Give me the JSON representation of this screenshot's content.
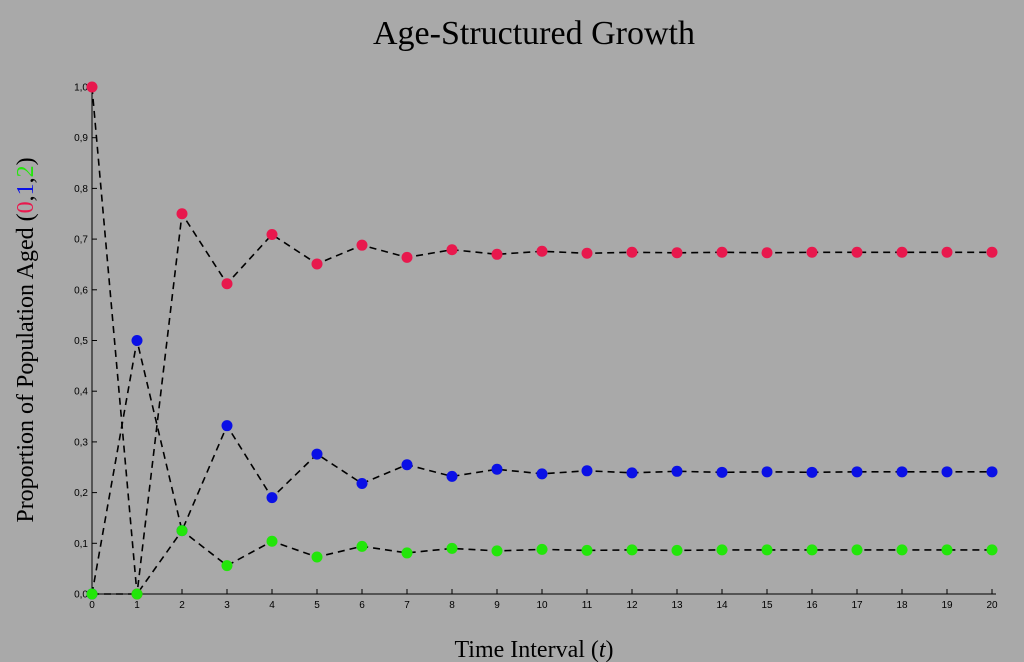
{
  "chart_data": {
    "type": "scatter",
    "title": "Age-Structured Growth",
    "xlabel_prefix": "Time Interval (",
    "xlabel_var": "t",
    "xlabel_suffix": ")",
    "ylabel_prefix": "Proportion of Population Aged (",
    "ylabel_parts": [
      "0",
      ",",
      "1",
      ",",
      "2"
    ],
    "ylabel_suffix": ")",
    "xlim": [
      0,
      20
    ],
    "ylim": [
      0,
      1.0
    ],
    "x": [
      0,
      1,
      2,
      3,
      4,
      5,
      6,
      7,
      8,
      9,
      10,
      11,
      12,
      13,
      14,
      15,
      16,
      17,
      18,
      19,
      20
    ],
    "x_ticks": [
      "0",
      "1",
      "2",
      "3",
      "4",
      "5",
      "6",
      "7",
      "8",
      "9",
      "10",
      "11",
      "12",
      "13",
      "14",
      "15",
      "16",
      "17",
      "18",
      "19",
      "20"
    ],
    "y_ticks": [
      {
        "value": 0.0,
        "label": "0,0"
      },
      {
        "value": 0.1,
        "label": "0,1"
      },
      {
        "value": 0.2,
        "label": "0,2"
      },
      {
        "value": 0.3,
        "label": "0,3"
      },
      {
        "value": 0.4,
        "label": "0,4"
      },
      {
        "value": 0.5,
        "label": "0,5"
      },
      {
        "value": 0.6,
        "label": "0,6"
      },
      {
        "value": 0.7,
        "label": "0,7"
      },
      {
        "value": 0.8,
        "label": "0,8"
      },
      {
        "value": 0.9,
        "label": "0,9"
      },
      {
        "value": 1.0,
        "label": "1,0"
      }
    ],
    "grid": false,
    "line_style": "dashed",
    "series": [
      {
        "color": "#e8184d",
        "values": [
          1.0,
          0.0,
          0.75,
          0.612,
          0.709,
          0.651,
          0.688,
          0.664,
          0.679,
          0.67,
          0.676,
          0.672,
          0.674,
          0.673,
          0.674,
          0.673,
          0.674,
          0.674,
          0.674,
          0.674,
          0.674
        ]
      },
      {
        "color": "#0a10e6",
        "values": [
          0.0,
          0.5,
          0.125,
          0.332,
          0.19,
          0.276,
          0.218,
          0.255,
          0.232,
          0.246,
          0.237,
          0.243,
          0.239,
          0.242,
          0.24,
          0.241,
          0.24,
          0.241,
          0.241,
          0.241,
          0.241
        ]
      },
      {
        "color": "#22e60a",
        "values": [
          0.0,
          0.0,
          0.125,
          0.056,
          0.104,
          0.073,
          0.094,
          0.081,
          0.09,
          0.085,
          0.088,
          0.086,
          0.087,
          0.086,
          0.087,
          0.087,
          0.087,
          0.087,
          0.087,
          0.087,
          0.087
        ]
      }
    ]
  }
}
